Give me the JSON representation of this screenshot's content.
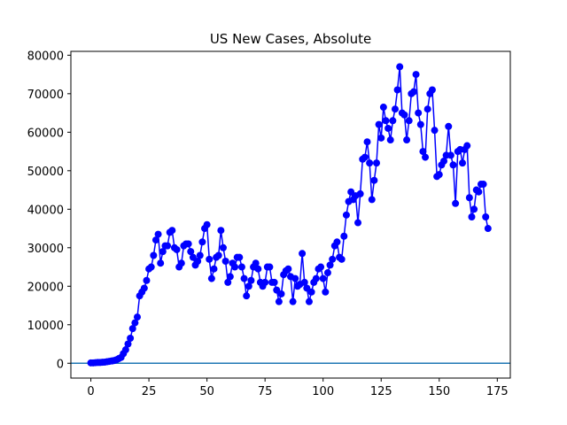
{
  "chart_data": {
    "type": "line",
    "title": "US New Cases, Absolute",
    "xlabel": "",
    "ylabel": "",
    "xlim": [
      -8.6,
      180.6
    ],
    "ylim": [
      -3850,
      81000
    ],
    "x_ticks": [
      0,
      25,
      50,
      75,
      100,
      125,
      150,
      175
    ],
    "y_ticks": [
      0,
      10000,
      20000,
      30000,
      40000,
      50000,
      60000,
      70000,
      80000
    ],
    "grid": false,
    "legend": "none",
    "series": [
      {
        "color": "#0000ff",
        "marker": "circle",
        "values": [
          100,
          100,
          150,
          200,
          200,
          250,
          300,
          400,
          500,
          600,
          700,
          900,
          1200,
          1500,
          2500,
          3500,
          5000,
          6500,
          9000,
          10500,
          12000,
          17500,
          18500,
          19500,
          21500,
          24500,
          25000,
          28000,
          32000,
          33500,
          26000,
          29000,
          30500,
          30500,
          34000,
          34500,
          30000,
          29500,
          25000,
          26000,
          30500,
          31000,
          31000,
          29000,
          27500,
          25500,
          26500,
          28000,
          31500,
          35000,
          36000,
          27000,
          22000,
          24500,
          27500,
          28000,
          34500,
          30000,
          26500,
          21000,
          22500,
          26000,
          25000,
          27500,
          27500,
          25000,
          22000,
          17500,
          20000,
          21500,
          25000,
          26000,
          24500,
          21000,
          20000,
          21000,
          25000,
          25000,
          21000,
          21000,
          19000,
          16000,
          18000,
          23000,
          24000,
          24500,
          22500,
          16000,
          22000,
          20000,
          20500,
          28500,
          21000,
          19500,
          16000,
          18500,
          21000,
          22000,
          24500,
          25000,
          22000,
          18500,
          23500,
          25500,
          27000,
          30500,
          31500,
          27500,
          27000,
          33000,
          38500,
          42000,
          44500,
          42500,
          43500,
          36500,
          44000,
          53000,
          53500,
          57500,
          52000,
          42500,
          47500,
          52000,
          62000,
          58500,
          66500,
          63000,
          61000,
          58000,
          63000,
          66000,
          71000,
          77000,
          65000,
          64500,
          58000,
          63000,
          70000,
          70500,
          75000,
          65000,
          62000,
          55000,
          53500,
          66000,
          70000,
          71000,
          60500,
          48500,
          49000,
          51500,
          52500,
          54000,
          61500,
          54000,
          51500,
          41500,
          55000,
          55500,
          52000,
          55500,
          56500,
          43000,
          38000,
          40000,
          45000,
          44500,
          46500,
          46500,
          38000,
          35000
        ]
      }
    ],
    "reference_line": {
      "y": 0,
      "color": "#1f77b4"
    }
  }
}
